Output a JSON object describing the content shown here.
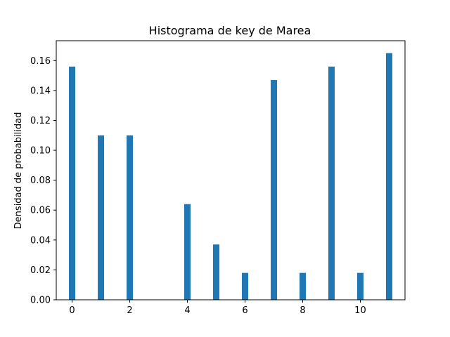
{
  "chart_data": {
    "type": "bar",
    "title": "Histograma de key de Marea",
    "xlabel": "",
    "ylabel": "Densidad de probabilidad",
    "bar_color": "#1f77b4",
    "x": [
      0,
      1,
      2,
      4,
      5,
      6,
      7,
      8,
      9,
      10,
      11
    ],
    "values": [
      0.156,
      0.11,
      0.11,
      0.064,
      0.037,
      0.018,
      0.147,
      0.018,
      0.156,
      0.018,
      0.165
    ],
    "xlim": [
      -0.55,
      11.55
    ],
    "ylim": [
      0,
      0.1733
    ],
    "bar_width": 0.22,
    "x_ticks": [
      0,
      2,
      4,
      6,
      8,
      10
    ],
    "x_tick_labels": [
      "0",
      "2",
      "4",
      "6",
      "8",
      "10"
    ],
    "y_ticks": [
      0,
      0.02,
      0.04,
      0.06,
      0.08,
      0.1,
      0.12,
      0.14,
      0.16
    ],
    "y_tick_labels": [
      "0.00",
      "0.02",
      "0.04",
      "0.06",
      "0.08",
      "0.10",
      "0.12",
      "0.14",
      "0.16"
    ],
    "grid": false,
    "legend": "none"
  }
}
